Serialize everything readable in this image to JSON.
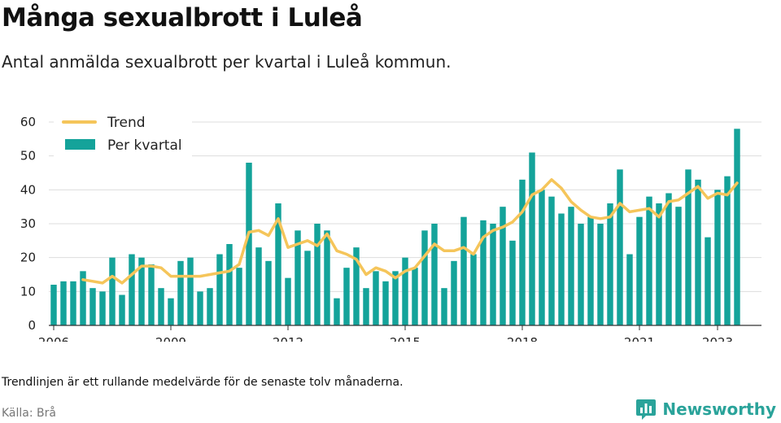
{
  "header": {
    "title": "Många sexualbrott i Luleå",
    "subtitle": "Antal anmälda sexualbrott per kvartal i Luleå kommun."
  },
  "footer": {
    "note": "Trendlinjen är ett rullande medelvärde för de senaste tolv månaderna.",
    "source": "Källa: Brå",
    "brand": "Newsworthy",
    "brand_icon": "bar-chart-icon"
  },
  "colors": {
    "bar": "#14a39a",
    "trend": "#f5c55a",
    "grid": "#dddddd",
    "axis": "#333333"
  },
  "chart_data": {
    "type": "bar",
    "legend": [
      "Trend",
      "Per kvartal"
    ],
    "legend_position": "top-left",
    "grid": true,
    "ylim": [
      0,
      60
    ],
    "yticks": [
      0,
      10,
      20,
      30,
      40,
      50,
      60
    ],
    "xticks": [
      2006,
      2009,
      2012,
      2015,
      2018,
      2021,
      2023
    ],
    "xlim": [
      2005.875,
      2024.125
    ],
    "x_start": 2006.0,
    "x_step": 0.25,
    "series": [
      {
        "name": "Per kvartal",
        "type": "bar",
        "values": [
          12,
          13,
          13,
          16,
          11,
          10,
          20,
          9,
          21,
          20,
          18,
          11,
          8,
          19,
          20,
          10,
          11,
          21,
          24,
          17,
          48,
          23,
          19,
          36,
          14,
          28,
          22,
          30,
          28,
          8,
          17,
          23,
          11,
          16,
          13,
          16,
          20,
          17,
          28,
          30,
          11,
          19,
          32,
          21,
          31,
          30,
          35,
          25,
          43,
          51,
          40,
          38,
          33,
          35,
          30,
          32,
          30,
          36,
          46,
          21,
          32,
          38,
          36,
          39,
          35,
          46,
          43,
          26,
          40,
          44,
          58
        ]
      },
      {
        "name": "Trend",
        "type": "line",
        "x_start": 2006.75,
        "values": [
          13.5,
          13,
          12.5,
          14.5,
          12.5,
          15,
          17.5,
          17.5,
          17,
          14.5,
          14.5,
          14.5,
          14.5,
          15,
          15.5,
          16,
          18,
          27.5,
          28,
          26.5,
          31.5,
          23,
          24,
          25,
          23.5,
          27,
          22,
          21,
          19.5,
          15,
          17,
          16,
          14,
          16,
          17,
          20.5,
          24,
          22,
          22,
          23,
          21,
          26,
          28,
          29,
          30.5,
          33.5,
          38.5,
          40,
          43,
          40.5,
          36.5,
          34,
          32,
          31.5,
          32,
          36,
          33.5,
          34,
          34.5,
          32,
          36.5,
          37,
          39,
          41,
          37.5,
          39,
          38.5,
          42
        ]
      }
    ]
  }
}
